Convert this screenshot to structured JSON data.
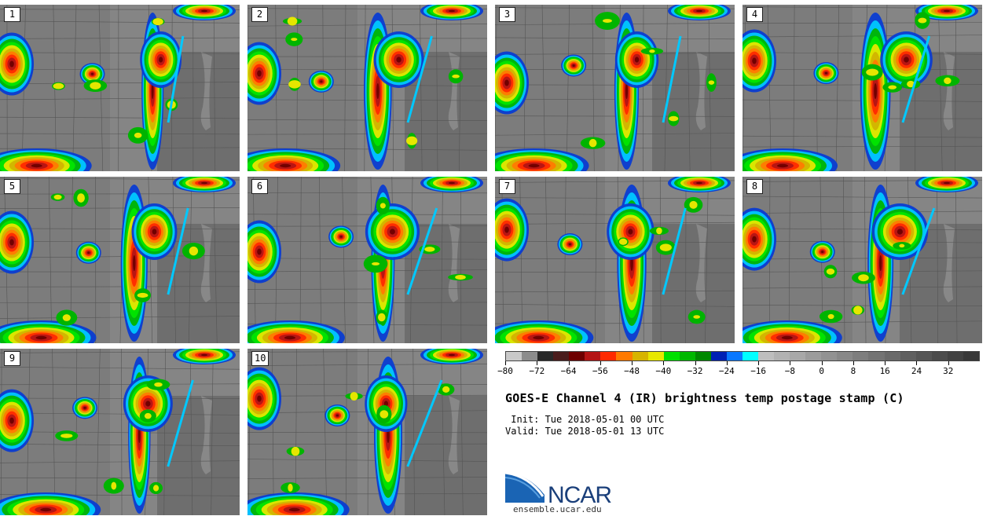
{
  "panels": [
    {
      "label": "1"
    },
    {
      "label": "2"
    },
    {
      "label": "3"
    },
    {
      "label": "4"
    },
    {
      "label": "5"
    },
    {
      "label": "6"
    },
    {
      "label": "7"
    },
    {
      "label": "8"
    },
    {
      "label": "9"
    },
    {
      "label": "10"
    }
  ],
  "colorbar": {
    "colors": [
      "#c8c8c8",
      "#8c8c8c",
      "#282828",
      "#4a1c1c",
      "#6e0000",
      "#b41414",
      "#ff2a00",
      "#ff7a00",
      "#d7b400",
      "#e8e800",
      "#00e000",
      "#00b800",
      "#008800",
      "#0020b4",
      "#0a78ff",
      "#00ffff",
      "#bebebe",
      "#b2b2b2",
      "#a8a8a8",
      "#9c9c9c",
      "#929292",
      "#888888",
      "#7e7e7e",
      "#747474",
      "#6a6a6a",
      "#606060",
      "#565656",
      "#4c4c4c",
      "#424242",
      "#383838"
    ],
    "ticks": [
      "−80",
      "−72",
      "−64",
      "−56",
      "−48",
      "−40",
      "−32",
      "−24",
      "−16",
      "−8",
      "0",
      "8",
      "16",
      "24",
      "32"
    ]
  },
  "title": "GOES-E Channel 4 (IR) brightness temp postage stamp (C)",
  "init_text": " Init: Tue 2018-05-01 00 UTC",
  "valid_text": "Valid: Tue 2018-05-01 13 UTC",
  "logo_text": "NCAR",
  "url": "ensemble.ucar.edu"
}
